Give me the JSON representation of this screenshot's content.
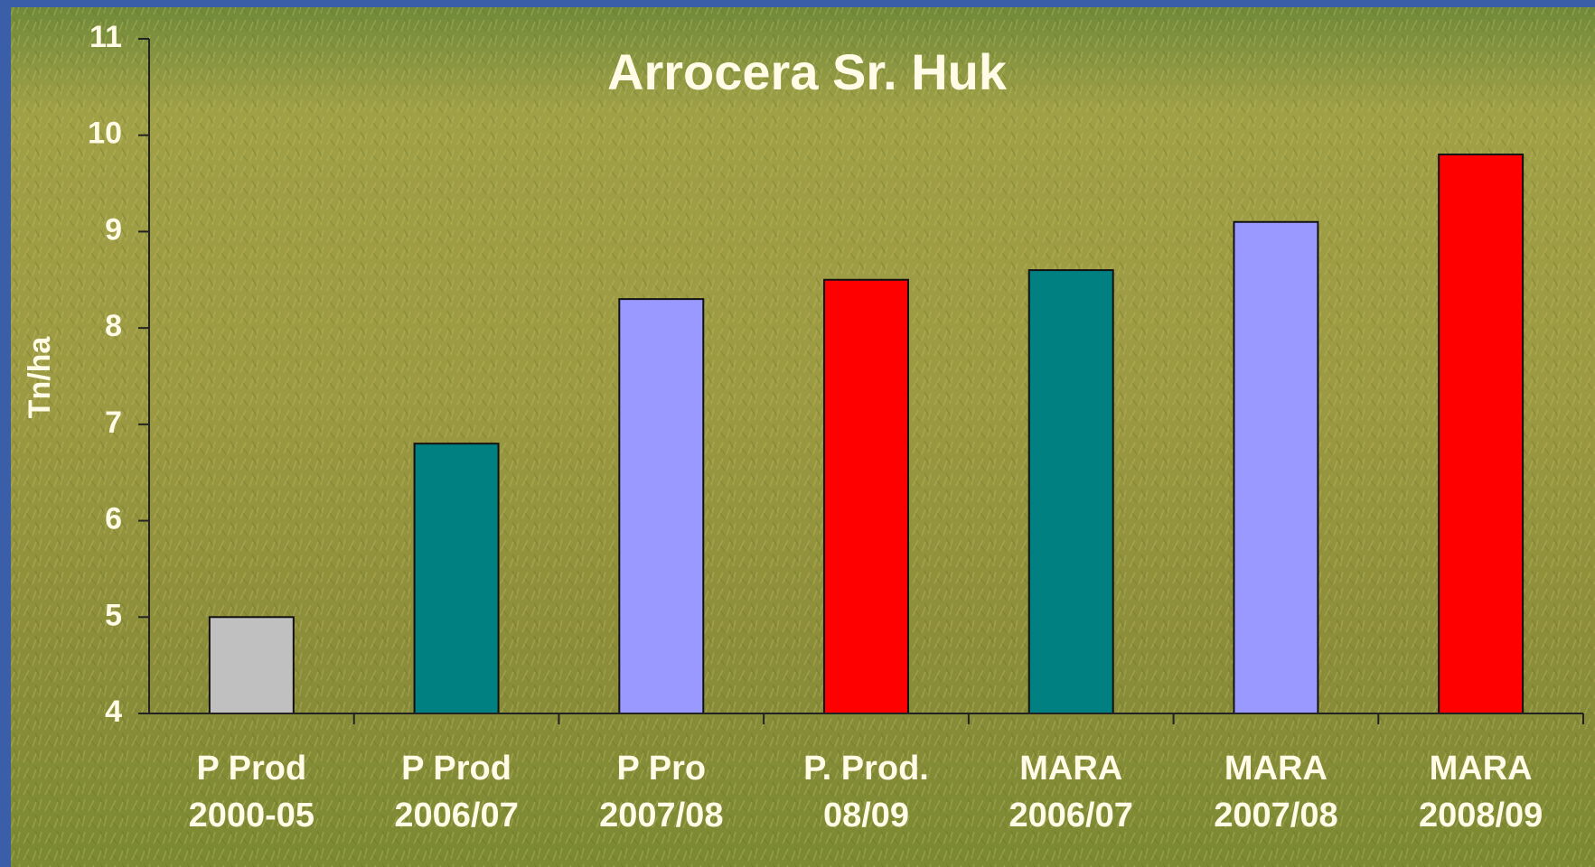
{
  "chart_data": {
    "type": "bar",
    "title": "Arrocera Sr. Huk",
    "y_label": "Tn/ha",
    "categories": [
      [
        "P Prod",
        "2000-05"
      ],
      [
        "P Prod",
        "2006/07"
      ],
      [
        "P Pro",
        "2007/08"
      ],
      [
        "P. Prod.",
        "08/09"
      ],
      [
        "MARA",
        "2006/07"
      ],
      [
        "MARA",
        "2007/08"
      ],
      [
        "MARA",
        "2008/09"
      ]
    ],
    "values": [
      5.0,
      6.8,
      8.3,
      8.5,
      8.6,
      9.1,
      9.8
    ],
    "colors": [
      "#c0c0c0",
      "#008080",
      "#9999ff",
      "#ff0000",
      "#008080",
      "#9999ff",
      "#ff0000"
    ],
    "ylim": [
      4,
      11
    ],
    "yticks": [
      4,
      5,
      6,
      7,
      8,
      9,
      10,
      11
    ],
    "grid": false
  }
}
